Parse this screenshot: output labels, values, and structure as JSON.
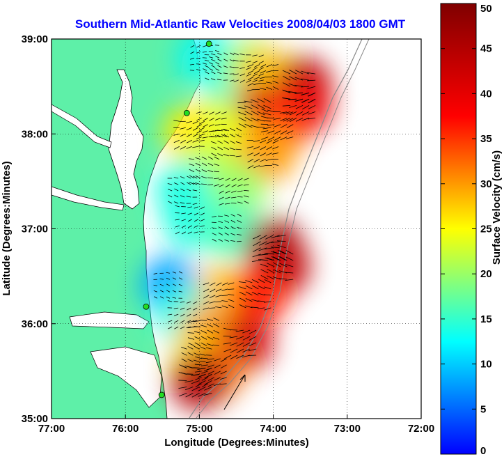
{
  "chart_data": {
    "type": "heatmap",
    "title": "Southern Mid-Atlantic Raw Velocities 2008/04/03 1800 GMT",
    "xlabel": "Longitude (Degrees:Minutes)",
    "ylabel": "Latitude (Degrees:Minutes)",
    "colorbar_label": "Surface Velocity (cm/s)",
    "x_ticks": [
      "77:00",
      "76:00",
      "75:00",
      "74:00",
      "73:00",
      "72:00"
    ],
    "x_tick_values": [
      -77,
      -76,
      -75,
      -74,
      -73,
      -72
    ],
    "y_ticks": [
      "39:00",
      "38:00",
      "37:00",
      "36:00",
      "35:00"
    ],
    "y_tick_values": [
      39,
      38,
      37,
      36,
      35
    ],
    "xlim": [
      -77,
      -72
    ],
    "ylim": [
      35,
      39
    ],
    "clim": [
      0,
      50
    ],
    "colorbar_ticks": [
      0,
      5,
      10,
      15,
      20,
      25,
      30,
      35,
      40,
      45,
      50
    ],
    "grid": true,
    "colors": {
      "land": "#5ef0a8",
      "water": "#ffffff",
      "title": "#0000ff",
      "vectors": "#000000",
      "sites": "#22dd22",
      "bathymetry": "#888888"
    },
    "hf_radar_sites": [
      {
        "lon": -74.87,
        "lat": 38.95
      },
      {
        "lon": -75.17,
        "lat": 38.22
      },
      {
        "lon": -75.72,
        "lat": 36.18
      },
      {
        "lon": -75.51,
        "lat": 35.25
      }
    ],
    "velocity_field": [
      {
        "lon": -74.9,
        "lat": 38.8,
        "speed": 12
      },
      {
        "lon": -74.7,
        "lat": 38.7,
        "speed": 14
      },
      {
        "lon": -74.3,
        "lat": 38.7,
        "speed": 20
      },
      {
        "lon": -74.1,
        "lat": 38.6,
        "speed": 28
      },
      {
        "lon": -73.6,
        "lat": 38.5,
        "speed": 45
      },
      {
        "lon": -73.6,
        "lat": 38.3,
        "speed": 40
      },
      {
        "lon": -74.2,
        "lat": 38.2,
        "speed": 44
      },
      {
        "lon": -73.9,
        "lat": 38.1,
        "speed": 36
      },
      {
        "lon": -74.8,
        "lat": 38.1,
        "speed": 22
      },
      {
        "lon": -75.1,
        "lat": 38.0,
        "speed": 26
      },
      {
        "lon": -74.6,
        "lat": 37.9,
        "speed": 24
      },
      {
        "lon": -74.1,
        "lat": 37.8,
        "speed": 30
      },
      {
        "lon": -74.9,
        "lat": 37.6,
        "speed": 22
      },
      {
        "lon": -75.2,
        "lat": 37.4,
        "speed": 14
      },
      {
        "lon": -74.5,
        "lat": 37.4,
        "speed": 20
      },
      {
        "lon": -75.1,
        "lat": 37.1,
        "speed": 14
      },
      {
        "lon": -74.6,
        "lat": 37.0,
        "speed": 16
      },
      {
        "lon": -74.0,
        "lat": 36.8,
        "speed": 48
      },
      {
        "lon": -73.9,
        "lat": 36.6,
        "speed": 44
      },
      {
        "lon": -75.4,
        "lat": 36.4,
        "speed": 8
      },
      {
        "lon": -74.7,
        "lat": 36.3,
        "speed": 28
      },
      {
        "lon": -74.2,
        "lat": 36.3,
        "speed": 36
      },
      {
        "lon": -75.2,
        "lat": 36.1,
        "speed": 14
      },
      {
        "lon": -74.9,
        "lat": 35.9,
        "speed": 30
      },
      {
        "lon": -74.4,
        "lat": 35.8,
        "speed": 42
      },
      {
        "lon": -75.0,
        "lat": 35.6,
        "speed": 26
      },
      {
        "lon": -74.8,
        "lat": 35.5,
        "speed": 32
      },
      {
        "lon": -75.0,
        "lat": 35.4,
        "speed": 45
      }
    ]
  }
}
